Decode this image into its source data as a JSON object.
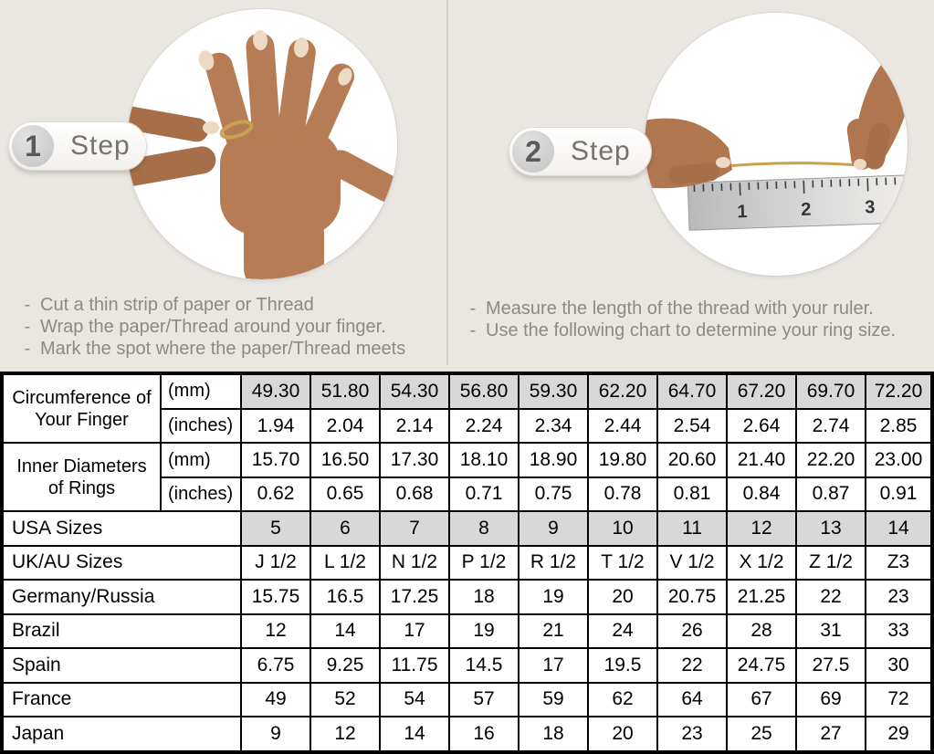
{
  "ui": {
    "dash": "-"
  },
  "steps": [
    {
      "number": "1",
      "label": "Step",
      "instructions": [
        "Cut a thin strip of paper or Thread",
        "Wrap the paper/Thread around your finger.",
        "Mark the spot where the paper/Thread meets"
      ]
    },
    {
      "number": "2",
      "label": "Step",
      "instructions": [
        "Measure the length of the thread with your ruler.",
        "Use the following chart to determine your ring size."
      ]
    }
  ],
  "photo2": {
    "ruler_numbers": [
      "1",
      "2",
      "3"
    ]
  },
  "colors": {
    "background": "#eae7e2",
    "shaded_cell": "#d8d8d8",
    "table_border": "#000000",
    "instruction_text": "#8d8a85",
    "thread_gold": "#c8a24e"
  },
  "table": {
    "groups": [
      {
        "label": "Circumference of Your Finger",
        "sub": [
          {
            "unit": "(mm)",
            "shaded": true,
            "values": [
              "49.30",
              "51.80",
              "54.30",
              "56.80",
              "59.30",
              "62.20",
              "64.70",
              "67.20",
              "69.70",
              "72.20"
            ]
          },
          {
            "unit": "(inches)",
            "shaded": false,
            "values": [
              "1.94",
              "2.04",
              "2.14",
              "2.24",
              "2.34",
              "2.44",
              "2.54",
              "2.64",
              "2.74",
              "2.85"
            ]
          }
        ]
      },
      {
        "label": "Inner Diameters of Rings",
        "sub": [
          {
            "unit": "(mm)",
            "shaded": false,
            "values": [
              "15.70",
              "16.50",
              "17.30",
              "18.10",
              "18.90",
              "19.80",
              "20.60",
              "21.40",
              "22.20",
              "23.00"
            ]
          },
          {
            "unit": "(inches)",
            "shaded": false,
            "values": [
              "0.62",
              "0.65",
              "0.68",
              "0.71",
              "0.75",
              "0.78",
              "0.81",
              "0.84",
              "0.87",
              "0.91"
            ]
          }
        ]
      }
    ],
    "rows": [
      {
        "label": "USA Sizes",
        "shaded": true,
        "values": [
          "5",
          "6",
          "7",
          "8",
          "9",
          "10",
          "11",
          "12",
          "13",
          "14"
        ]
      },
      {
        "label": "UK/AU Sizes",
        "shaded": false,
        "values": [
          "J 1/2",
          "L 1/2",
          "N 1/2",
          "P 1/2",
          "R 1/2",
          "T 1/2",
          "V 1/2",
          "X 1/2",
          "Z 1/2",
          "Z3"
        ]
      },
      {
        "label": "Germany/Russia",
        "shaded": false,
        "values": [
          "15.75",
          "16.5",
          "17.25",
          "18",
          "19",
          "20",
          "20.75",
          "21.25",
          "22",
          "23"
        ]
      },
      {
        "label": "Brazil",
        "shaded": false,
        "values": [
          "12",
          "14",
          "17",
          "19",
          "21",
          "24",
          "26",
          "28",
          "31",
          "33"
        ]
      },
      {
        "label": "Spain",
        "shaded": false,
        "values": [
          "6.75",
          "9.25",
          "11.75",
          "14.5",
          "17",
          "19.5",
          "22",
          "24.75",
          "27.5",
          "30"
        ]
      },
      {
        "label": "France",
        "shaded": false,
        "values": [
          "49",
          "52",
          "54",
          "57",
          "59",
          "62",
          "64",
          "67",
          "69",
          "72"
        ]
      },
      {
        "label": "Japan",
        "shaded": false,
        "values": [
          "9",
          "12",
          "14",
          "16",
          "18",
          "20",
          "23",
          "25",
          "27",
          "29"
        ]
      }
    ]
  }
}
